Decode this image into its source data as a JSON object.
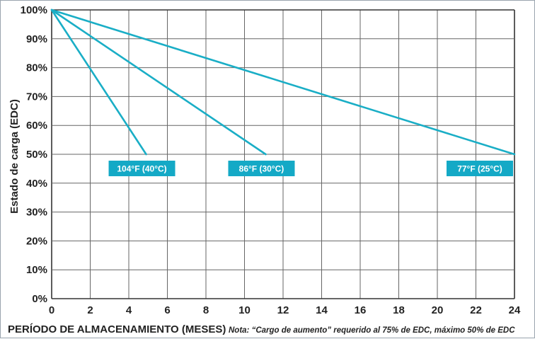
{
  "chart_data": {
    "type": "line",
    "title": "",
    "xlabel": "PERÍODO DE ALMACENAMIENTO (MESES)",
    "ylabel": "Estado de carga (EDC)",
    "note": "Nota: “Cargo de aumento” requerido al 75% de EDC, máximo 50% de EDC",
    "xlim": [
      0,
      24
    ],
    "ylim": [
      0,
      100
    ],
    "x_ticks": [
      "0",
      "2",
      "4",
      "6",
      "8",
      "10",
      "12",
      "14",
      "16",
      "18",
      "20",
      "22",
      "24"
    ],
    "y_ticks": [
      "0%",
      "10%",
      "20%",
      "30%",
      "40%",
      "50%",
      "60%",
      "70%",
      "80%",
      "90%",
      "100%"
    ],
    "x_tick_values": [
      0,
      2,
      4,
      6,
      8,
      10,
      12,
      14,
      16,
      18,
      20,
      22,
      24
    ],
    "y_tick_values": [
      0,
      10,
      20,
      30,
      40,
      50,
      60,
      70,
      80,
      90,
      100
    ],
    "x_grid_step": 2,
    "y_grid_step": 10,
    "grid": true,
    "series": [
      {
        "name": "104°F (40°C)",
        "x": [
          0,
          4.9
        ],
        "y": [
          100,
          50
        ]
      },
      {
        "name": "86°F (30°C)",
        "x": [
          0,
          11.1
        ],
        "y": [
          100,
          50
        ]
      },
      {
        "name": "77°F (25°C)",
        "x": [
          0,
          24
        ],
        "y": [
          100,
          50
        ]
      }
    ],
    "colors": {
      "line": "#1aaec6",
      "label_bg": "#14a9c6",
      "label_text": "#ffffff",
      "grid": "#666666",
      "frame": "#9aa4ae"
    }
  }
}
